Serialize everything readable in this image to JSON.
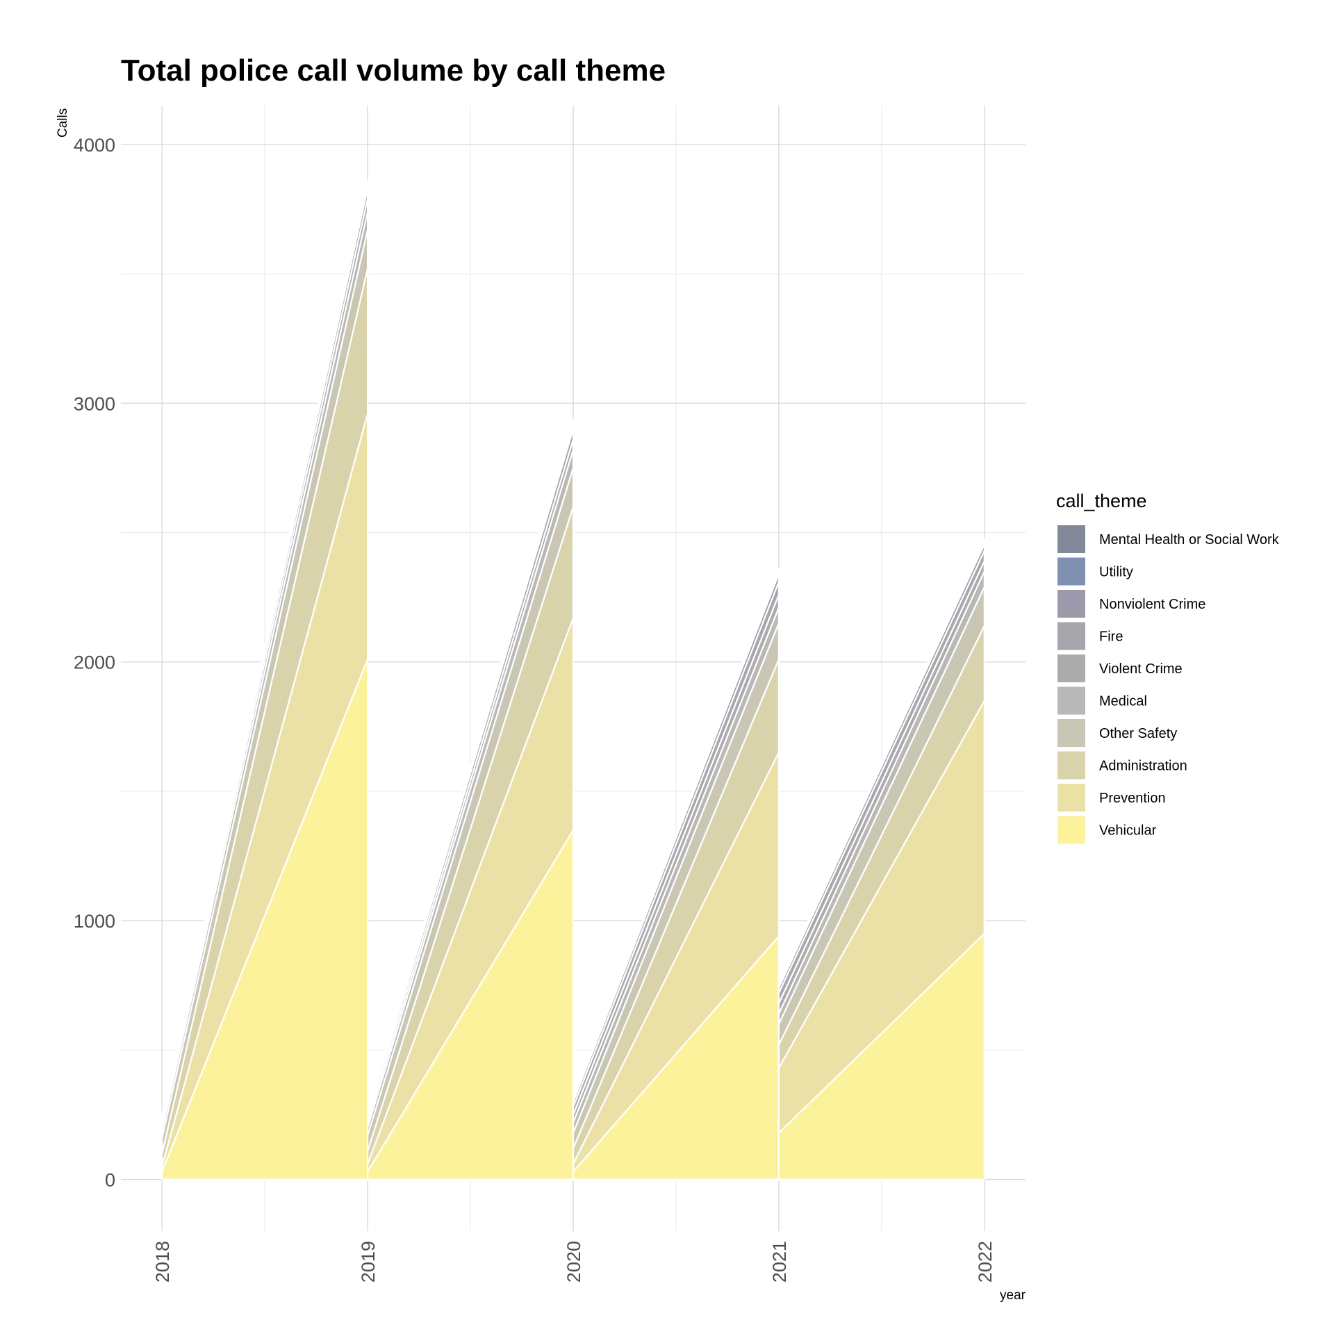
{
  "chart_data": {
    "type": "area",
    "title": "Total police call volume by call theme",
    "xlabel": "year",
    "ylabel": "Calls",
    "x_ticks": [
      "2018",
      "2019",
      "2020",
      "2021",
      "2022"
    ],
    "y_ticks": [
      "0",
      "1000",
      "2000",
      "3000",
      "4000"
    ],
    "ylim": [
      -200,
      4150
    ],
    "xlim": [
      2017.8,
      2022.2
    ],
    "grid": true,
    "legend_title": "call_theme",
    "legend_position": "right",
    "series_order_bottom_to_top": [
      "Vehicular",
      "Prevention",
      "Administration",
      "Other Safety",
      "Medical",
      "Violent Crime",
      "Fire",
      "Nonviolent Crime",
      "Utility",
      "Mental Health or Social Work"
    ],
    "series": [
      {
        "name": "Mental Health or Social Work",
        "color": "#828a9a",
        "segments": [
          [
            5,
            5
          ],
          [
            5,
            10
          ],
          [
            5,
            10
          ],
          [
            5,
            10
          ]
        ]
      },
      {
        "name": "Utility",
        "color": "#8090b0",
        "segments": [
          [
            5,
            5
          ],
          [
            5,
            5
          ],
          [
            5,
            10
          ],
          [
            5,
            10
          ]
        ]
      },
      {
        "name": "Nonviolent Crime",
        "color": "#9a9aaa",
        "segments": [
          [
            10,
            20
          ],
          [
            10,
            20
          ],
          [
            20,
            30
          ],
          [
            20,
            25
          ]
        ]
      },
      {
        "name": "Fire",
        "color": "#a6a7ad",
        "segments": [
          [
            20,
            40
          ],
          [
            20,
            40
          ],
          [
            30,
            50
          ],
          [
            40,
            40
          ]
        ]
      },
      {
        "name": "Violent Crime",
        "color": "#ababab",
        "segments": [
          [
            20,
            50
          ],
          [
            20,
            40
          ],
          [
            30,
            50
          ],
          [
            40,
            40
          ]
        ]
      },
      {
        "name": "Medical",
        "color": "#b9b8b6",
        "segments": [
          [
            30,
            70
          ],
          [
            30,
            70
          ],
          [
            40,
            60
          ],
          [
            40,
            60
          ]
        ]
      },
      {
        "name": "Other Safety",
        "color": "#c9c6b3",
        "segments": [
          [
            60,
            150
          ],
          [
            60,
            150
          ],
          [
            60,
            140
          ],
          [
            80,
            150
          ]
        ]
      },
      {
        "name": "Administration",
        "color": "#d9d3ac",
        "segments": [
          [
            50,
            560
          ],
          [
            50,
            430
          ],
          [
            60,
            360
          ],
          [
            90,
            290
          ]
        ]
      },
      {
        "name": "Prevention",
        "color": "#ebe1a6",
        "segments": [
          [
            20,
            950
          ],
          [
            30,
            820
          ],
          [
            30,
            710
          ],
          [
            250,
            900
          ]
        ]
      },
      {
        "name": "Vehicular",
        "color": "#fdf29c",
        "segments": [
          [
            30,
            2010
          ],
          [
            30,
            1350
          ],
          [
            30,
            940
          ],
          [
            180,
            950
          ]
        ]
      }
    ],
    "colors": {
      "panel_background": "#ffffff",
      "grid_major": "#d9d9d9",
      "grid_minor": "#ececec",
      "area_outline": "#ffffff"
    }
  }
}
